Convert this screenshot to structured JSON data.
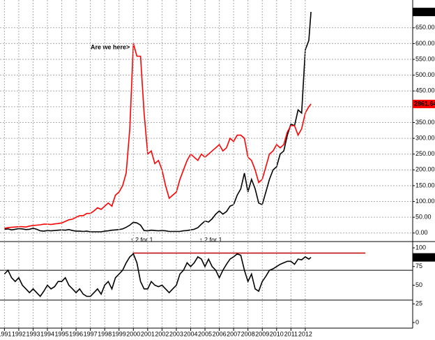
{
  "chart_data": [
    {
      "type": "line",
      "x": [
        1991,
        1991.25,
        1991.5,
        1991.75,
        1992,
        1992.25,
        1992.5,
        1992.75,
        1993,
        1993.25,
        1993.5,
        1993.75,
        1994,
        1994.25,
        1994.5,
        1994.75,
        1995,
        1995.25,
        1995.5,
        1995.75,
        1996,
        1996.25,
        1996.5,
        1996.75,
        1997,
        1997.25,
        1997.5,
        1997.75,
        1998,
        1998.25,
        1998.5,
        1998.75,
        1999,
        1999.25,
        1999.5,
        1999.75,
        2000,
        2000.25,
        2000.5,
        2000.75,
        2001,
        2001.25,
        2001.5,
        2001.75,
        2002,
        2002.25,
        2002.5,
        2002.75,
        2003,
        2003.25,
        2003.5,
        2003.75,
        2004,
        2004.25,
        2004.5,
        2004.75,
        2005,
        2005.25,
        2005.5,
        2005.75,
        2006,
        2006.25,
        2006.5,
        2006.75,
        2007,
        2007.25,
        2007.5,
        2007.75,
        2008,
        2008.25,
        2008.5,
        2008.75,
        2009,
        2009.25,
        2009.5,
        2009.75,
        2010,
        2010.25,
        2010.5,
        2010.75,
        2011,
        2011.25,
        2011.5,
        2011.75,
        2012,
        2012.25,
        2012.4
      ],
      "series": [
        {
          "color": "#000000",
          "values": [
            12,
            13,
            10,
            12,
            14,
            13,
            11,
            12,
            15,
            12,
            7,
            6,
            8,
            7,
            8,
            9,
            10,
            9,
            11,
            8,
            6,
            6,
            5,
            6,
            4,
            4,
            4,
            4,
            6,
            7,
            9,
            10,
            11,
            13,
            18,
            25,
            34,
            32,
            25,
            8,
            7,
            9,
            8,
            7,
            8,
            7,
            5,
            5,
            5,
            5,
            7,
            8,
            10,
            12,
            17,
            28,
            38,
            35,
            45,
            60,
            70,
            60,
            68,
            85,
            90,
            120,
            140,
            190,
            130,
            170,
            140,
            95,
            90,
            130,
            170,
            200,
            210,
            250,
            260,
            310,
            345,
            340,
            390,
            380,
            580,
            610,
            700.095
          ]
        },
        {
          "color": "#ff0000",
          "axis": "y2",
          "values": [
            105,
            119,
            126,
            133,
            140,
            140,
            133,
            154,
            168,
            175,
            182,
            196,
            196,
            189,
            203,
            210,
            224,
            259,
            294,
            308,
            350,
            385,
            385,
            434,
            434,
            490,
            560,
            525,
            595,
            665,
            595,
            840,
            910,
            1050,
            1330,
            2310,
            4200,
            3920,
            3920,
            2660,
            1750,
            1820,
            1540,
            1610,
            1400,
            1050,
            770,
            840,
            910,
            1190,
            1400,
            1610,
            1750,
            1680,
            1610,
            1750,
            1680,
            1750,
            1820,
            1890,
            1960,
            1820,
            1890,
            2100,
            2030,
            2170,
            2170,
            2100,
            1680,
            1610,
            1400,
            1120,
            1190,
            1470,
            1750,
            1820,
            1960,
            1890,
            1960,
            2240,
            2380,
            2380,
            2170,
            2310,
            2660,
            2800,
            2861.64
          ]
        }
      ],
      "xlim": [
        1990.69,
        2019.5
      ],
      "ylim": [
        -27,
        738
      ],
      "y2lim": [
        -189,
        5166
      ],
      "yticks": [
        {
          "value": 0,
          "label": "0.00"
        },
        {
          "value": 50,
          "label": "50.00"
        },
        {
          "value": 100,
          "label": "100.00"
        },
        {
          "value": 150,
          "label": "150.00"
        },
        {
          "value": 200,
          "label": "200.00"
        },
        {
          "value": 250,
          "label": "250.00"
        },
        {
          "value": 300,
          "label": "300.00"
        },
        {
          "value": 350,
          "label": "350.00"
        },
        {
          "value": 400,
          "label": "400.00"
        },
        {
          "value": 450,
          "label": "450.00"
        },
        {
          "value": 500,
          "label": "500.00"
        },
        {
          "value": 550,
          "label": "550.00"
        },
        {
          "value": 600,
          "label": "600.00"
        },
        {
          "value": 650,
          "label": "650.00"
        }
      ],
      "grid": true,
      "annotations": [
        "Are we here>",
        "↑ 2 for 1",
        "↑ 2 for 1"
      ]
    },
    {
      "type": "line",
      "x": [
        1991,
        1991.25,
        1991.5,
        1991.75,
        1992,
        1992.25,
        1992.5,
        1992.75,
        1993,
        1993.25,
        1993.5,
        1993.75,
        1994,
        1994.25,
        1994.5,
        1994.75,
        1995,
        1995.25,
        1995.5,
        1995.75,
        1996,
        1996.25,
        1996.5,
        1996.75,
        1997,
        1997.25,
        1997.5,
        1997.75,
        1998,
        1998.25,
        1998.5,
        1998.75,
        1999,
        1999.25,
        1999.5,
        1999.75,
        2000,
        2000.25,
        2000.5,
        2000.75,
        2001,
        2001.25,
        2001.5,
        2001.75,
        2002,
        2002.25,
        2002.5,
        2002.75,
        2003,
        2003.25,
        2003.5,
        2003.75,
        2004,
        2004.25,
        2004.5,
        2004.75,
        2005,
        2005.25,
        2005.5,
        2005.75,
        2006,
        2006.25,
        2006.5,
        2006.75,
        2007,
        2007.25,
        2007.5,
        2007.75,
        2008,
        2008.25,
        2008.5,
        2008.75,
        2009,
        2009.25,
        2009.5,
        2009.75,
        2010,
        2010.25,
        2010.5,
        2010.75,
        2011,
        2011.25,
        2011.5,
        2011.75,
        2012,
        2012.25,
        2012.4
      ],
      "series": [
        {
          "color": "#000000",
          "values": [
            65,
            70,
            60,
            55,
            60,
            50,
            45,
            40,
            45,
            40,
            35,
            42,
            50,
            45,
            48,
            55,
            55,
            60,
            50,
            45,
            40,
            45,
            38,
            35,
            35,
            40,
            45,
            38,
            50,
            55,
            45,
            60,
            65,
            70,
            80,
            88,
            92,
            80,
            55,
            45,
            45,
            55,
            50,
            48,
            50,
            45,
            40,
            45,
            50,
            65,
            70,
            80,
            75,
            80,
            88,
            85,
            75,
            85,
            75,
            70,
            60,
            70,
            78,
            85,
            88,
            92,
            90,
            70,
            55,
            65,
            45,
            42,
            55,
            62,
            70,
            72,
            75,
            78,
            80,
            82,
            82,
            78,
            85,
            84,
            88,
            85,
            87.26
          ]
        }
      ],
      "xlim": [
        1990.69,
        2019.5
      ],
      "ylim": [
        -7.5,
        107.5
      ],
      "yticks": [
        0,
        25,
        50,
        75,
        100
      ],
      "xticks": [
        1991,
        1992,
        1993,
        1994,
        1995,
        1996,
        1997,
        1998,
        1999,
        2000,
        2001,
        2002,
        2003,
        2004,
        2005,
        2006,
        2007,
        2008,
        2009,
        2010,
        2011,
        2012
      ],
      "hlines": [
        70,
        30
      ],
      "red_line": {
        "value": 93,
        "x": [
          1999.95,
          2016.2
        ],
        "color": "#c00000"
      }
    }
  ]
}
